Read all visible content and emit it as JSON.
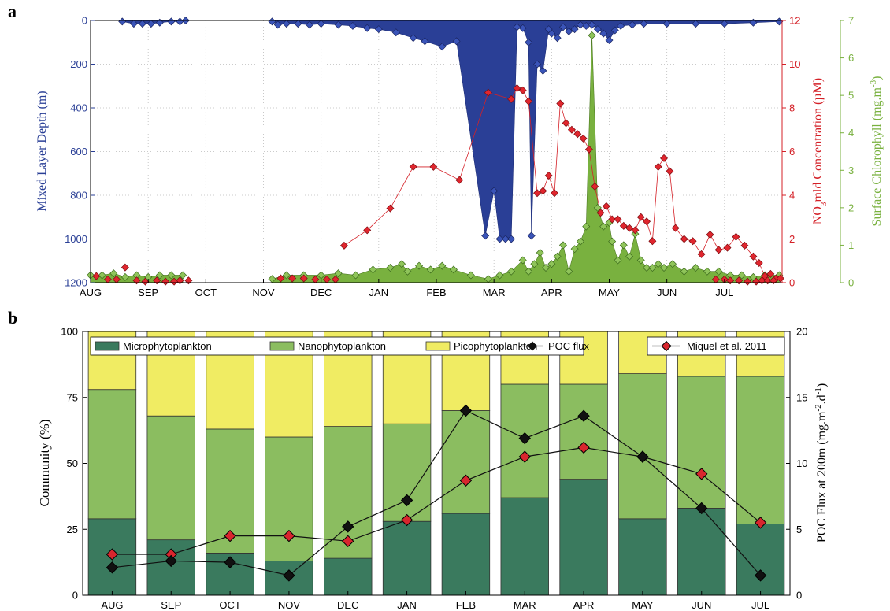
{
  "panel_a": {
    "letter": "a",
    "left_axis_label": "Mixed Layer Depth (m)",
    "mid_axis_label_parts": [
      "NO",
      "3",
      "mld Concentration (µM)"
    ],
    "right_axis_label_parts": [
      "Surface Chlorophyll (mg.m",
      "-3",
      ")"
    ]
  },
  "panel_b": {
    "letter": "b",
    "left_axis_label": "Community (%)",
    "right_axis_label_parts": [
      "POC Flux at 200m (mg.m",
      "-2",
      ".d",
      "-1",
      ")"
    ]
  },
  "colors": {
    "mld": "#2a3f96",
    "nitrate": "#d42027",
    "chl": "#79b13f",
    "micro": "#3a7a5e",
    "nano": "#8bbd60",
    "pico": "#f0ec63",
    "poc": "#1a1a1a"
  },
  "chart_data": [
    {
      "type": "area",
      "panel": "a",
      "x_ticks": [
        "AUG",
        "SEP",
        "OCT",
        "NOV",
        "DEC",
        "JAN",
        "FEB",
        "MAR",
        "APR",
        "MAY",
        "JUN",
        "JUL"
      ],
      "x_unit": "month (Aug=0 ... Jul=11, end=12)",
      "axes": {
        "mld": {
          "label": "Mixed Layer Depth (m)",
          "ylim": [
            1200,
            0
          ],
          "ticks": [
            0,
            200,
            400,
            600,
            800,
            1000,
            1200
          ],
          "reversed": true
        },
        "nitrate": {
          "label": "NO3mld Concentration (µM)",
          "ylim": [
            0,
            12
          ],
          "ticks": [
            0,
            2,
            4,
            6,
            8,
            10,
            12
          ]
        },
        "chl": {
          "label": "Surface Chlorophyll (mg.m-3)",
          "ylim": [
            0,
            7
          ],
          "ticks": [
            0,
            1,
            2,
            3,
            4,
            5,
            6,
            7
          ]
        }
      },
      "grid": true,
      "series": [
        {
          "key": "mld",
          "type": "area-with-markers",
          "segments": [
            [
              [
                0.55,
                5
              ],
              [
                0.75,
                15
              ],
              [
                0.9,
                15
              ],
              [
                1.05,
                15
              ],
              [
                1.2,
                10
              ],
              [
                1.4,
                5
              ],
              [
                1.55,
                5
              ],
              [
                1.65,
                0
              ]
            ],
            [
              [
                3.15,
                5
              ],
              [
                3.25,
                20
              ],
              [
                3.4,
                15
              ],
              [
                3.6,
                15
              ],
              [
                3.8,
                20
              ],
              [
                4.0,
                15
              ],
              [
                4.3,
                20
              ],
              [
                4.55,
                25
              ],
              [
                4.8,
                35
              ],
              [
                5.0,
                40
              ],
              [
                5.3,
                55
              ],
              [
                5.6,
                80
              ],
              [
                5.8,
                95
              ],
              [
                6.1,
                120
              ],
              [
                6.35,
                95
              ],
              [
                6.85,
                985
              ],
              [
                7.0,
                780
              ],
              [
                7.1,
                1000
              ],
              [
                7.2,
                1000
              ],
              [
                7.3,
                1000
              ],
              [
                7.4,
                30
              ],
              [
                7.5,
                35
              ],
              [
                7.6,
                100
              ],
              [
                7.65,
                985
              ],
              [
                7.75,
                200
              ],
              [
                7.85,
                230
              ],
              [
                7.95,
                40
              ],
              [
                8.0,
                60
              ],
              [
                8.1,
                80
              ],
              [
                8.2,
                30
              ],
              [
                8.3,
                50
              ],
              [
                8.4,
                40
              ],
              [
                8.5,
                20
              ],
              [
                8.6,
                25
              ],
              [
                8.7,
                20
              ],
              [
                8.8,
                40
              ],
              [
                8.9,
                60
              ],
              [
                9.0,
                90
              ],
              [
                9.1,
                45
              ],
              [
                9.2,
                25
              ],
              [
                9.4,
                20
              ],
              [
                9.6,
                15
              ],
              [
                10.0,
                15
              ],
              [
                10.5,
                15
              ],
              [
                11.0,
                15
              ],
              [
                11.5,
                10
              ],
              [
                11.95,
                5
              ]
            ]
          ]
        },
        {
          "key": "nitrate",
          "type": "line-with-markers",
          "points": [
            [
              0.1,
              0.3
            ],
            [
              0.6,
              0.7
            ],
            [
              1.15,
              0.1
            ],
            [
              1.55,
              0.1
            ],
            [
              1.7,
              0.1
            ],
            [
              4.4,
              1.7
            ],
            [
              4.8,
              2.4
            ],
            [
              5.2,
              3.4
            ],
            [
              5.6,
              5.3
            ],
            [
              5.95,
              5.3
            ],
            [
              6.4,
              4.7
            ],
            [
              6.9,
              8.7
            ],
            [
              7.3,
              8.4
            ],
            [
              7.4,
              8.9
            ],
            [
              7.5,
              8.8
            ],
            [
              7.6,
              8.3
            ],
            [
              7.75,
              4.1
            ],
            [
              7.85,
              4.2
            ],
            [
              7.95,
              4.9
            ],
            [
              8.05,
              4.1
            ],
            [
              8.15,
              8.2
            ],
            [
              8.25,
              7.3
            ],
            [
              8.35,
              7.0
            ],
            [
              8.45,
              6.8
            ],
            [
              8.55,
              6.6
            ],
            [
              8.65,
              6.1
            ],
            [
              8.75,
              4.4
            ],
            [
              8.85,
              3.2
            ],
            [
              8.95,
              3.5
            ],
            [
              9.05,
              2.9
            ],
            [
              9.15,
              2.9
            ],
            [
              9.25,
              2.6
            ],
            [
              9.35,
              2.5
            ],
            [
              9.45,
              2.4
            ],
            [
              9.55,
              3.0
            ],
            [
              9.65,
              2.8
            ],
            [
              9.75,
              1.9
            ],
            [
              9.85,
              5.3
            ],
            [
              9.95,
              5.7
            ],
            [
              10.05,
              5.1
            ],
            [
              10.15,
              2.5
            ],
            [
              10.3,
              2.0
            ],
            [
              10.45,
              1.9
            ],
            [
              10.6,
              1.3
            ],
            [
              10.75,
              2.2
            ],
            [
              10.9,
              1.5
            ],
            [
              11.05,
              1.6
            ],
            [
              11.2,
              2.1
            ],
            [
              11.35,
              1.7
            ],
            [
              11.5,
              1.2
            ],
            [
              11.6,
              0.9
            ],
            [
              11.7,
              0.3
            ],
            [
              11.8,
              0.4
            ],
            [
              11.9,
              0.2
            ],
            [
              11.97,
              0.2
            ]
          ],
          "dense_near_zero": [
            [
              0.3,
              0.15
            ],
            [
              0.45,
              0.15
            ],
            [
              0.8,
              0.1
            ],
            [
              0.95,
              0.05
            ],
            [
              1.3,
              0.05
            ],
            [
              1.45,
              0.05
            ],
            [
              3.3,
              0.2
            ],
            [
              3.5,
              0.2
            ],
            [
              3.7,
              0.2
            ],
            [
              3.9,
              0.15
            ],
            [
              4.1,
              0.15
            ],
            [
              4.25,
              0.15
            ],
            [
              10.85,
              0.15
            ],
            [
              11.0,
              0.15
            ],
            [
              11.1,
              0.1
            ],
            [
              11.25,
              0.1
            ],
            [
              11.4,
              0.05
            ],
            [
              11.55,
              0.05
            ],
            [
              11.65,
              0.1
            ],
            [
              11.75,
              0.1
            ],
            [
              11.85,
              0.1
            ]
          ]
        },
        {
          "key": "chl",
          "type": "area-with-markers",
          "segments": [
            [
              [
                0.0,
                0.2
              ],
              [
                0.2,
                0.2
              ],
              [
                0.4,
                0.25
              ],
              [
                0.6,
                0.15
              ],
              [
                0.8,
                0.2
              ],
              [
                1.0,
                0.15
              ],
              [
                1.2,
                0.2
              ],
              [
                1.4,
                0.2
              ],
              [
                1.6,
                0.2
              ]
            ],
            [
              [
                3.15,
                0.1
              ],
              [
                3.4,
                0.2
              ],
              [
                3.7,
                0.2
              ],
              [
                4.0,
                0.2
              ],
              [
                4.3,
                0.25
              ],
              [
                4.6,
                0.2
              ],
              [
                4.9,
                0.35
              ],
              [
                5.2,
                0.4
              ],
              [
                5.4,
                0.5
              ],
              [
                5.5,
                0.3
              ],
              [
                5.7,
                0.45
              ],
              [
                5.9,
                0.35
              ],
              [
                6.1,
                0.45
              ],
              [
                6.3,
                0.35
              ],
              [
                6.6,
                0.2
              ],
              [
                6.9,
                0.1
              ],
              [
                7.1,
                0.2
              ],
              [
                7.3,
                0.3
              ],
              [
                7.5,
                0.6
              ],
              [
                7.6,
                0.3
              ],
              [
                7.7,
                0.5
              ],
              [
                7.8,
                0.8
              ],
              [
                7.9,
                0.4
              ],
              [
                8.0,
                0.5
              ],
              [
                8.1,
                0.7
              ],
              [
                8.2,
                1.0
              ],
              [
                8.3,
                0.3
              ],
              [
                8.4,
                0.9
              ],
              [
                8.5,
                1.1
              ],
              [
                8.6,
                1.5
              ],
              [
                8.7,
                6.6
              ],
              [
                8.8,
                2.0
              ],
              [
                8.9,
                1.5
              ],
              [
                9.0,
                1.6
              ],
              [
                9.05,
                1.1
              ],
              [
                9.15,
                0.6
              ],
              [
                9.25,
                1.0
              ],
              [
                9.35,
                0.7
              ],
              [
                9.45,
                1.3
              ],
              [
                9.55,
                0.6
              ],
              [
                9.65,
                0.4
              ],
              [
                9.75,
                0.4
              ],
              [
                9.85,
                0.5
              ],
              [
                9.95,
                0.4
              ],
              [
                10.1,
                0.5
              ],
              [
                10.3,
                0.3
              ],
              [
                10.5,
                0.4
              ],
              [
                10.7,
                0.3
              ],
              [
                10.9,
                0.3
              ],
              [
                11.1,
                0.2
              ],
              [
                11.3,
                0.2
              ],
              [
                11.5,
                0.15
              ],
              [
                11.7,
                0.2
              ],
              [
                11.95,
                0.2
              ]
            ]
          ]
        }
      ]
    },
    {
      "type": "bar",
      "panel": "b",
      "stacked": true,
      "categories": [
        "AUG",
        "SEP",
        "OCT",
        "NOV",
        "DEC",
        "JAN",
        "FEB",
        "MAR",
        "APR",
        "MAY",
        "JUN",
        "JUL"
      ],
      "y_left": {
        "label": "Community (%)",
        "ylim": [
          0,
          100
        ],
        "ticks": [
          0,
          25,
          50,
          75,
          100
        ]
      },
      "y_right": {
        "label": "POC Flux at 200m (mg.m-2.d-1)",
        "ylim": [
          0,
          20
        ],
        "ticks": [
          0,
          5,
          10,
          15,
          20
        ]
      },
      "legend_left": {
        "entries": [
          "Microphytoplankton",
          "Nanophytoplankton",
          "Picophytoplankton",
          "POC flux"
        ],
        "position": "top-left"
      },
      "legend_right": {
        "entries": [
          "Miquel et al. 2011"
        ],
        "position": "top-right"
      },
      "series": [
        {
          "name": "Microphytoplankton",
          "values": [
            29,
            21,
            16,
            13,
            14,
            28,
            31,
            37,
            44,
            29,
            33,
            27
          ]
        },
        {
          "name": "Nanophytoplankton",
          "values": [
            49,
            47,
            47,
            47,
            50,
            37,
            39,
            43,
            36,
            55,
            50,
            56
          ]
        },
        {
          "name": "Picophytoplankton",
          "values": [
            22,
            32,
            37,
            40,
            36,
            35,
            30,
            20,
            20,
            16,
            17,
            17
          ]
        },
        {
          "name": "POC flux",
          "axis": "right",
          "values": [
            2.1,
            2.6,
            2.5,
            1.5,
            5.2,
            7.2,
            14.0,
            11.9,
            13.6,
            10.5,
            6.6,
            1.5
          ]
        },
        {
          "name": "Miquel et al. 2011",
          "axis": "right",
          "values": [
            3.1,
            3.1,
            4.5,
            4.5,
            4.1,
            5.7,
            8.7,
            10.5,
            11.2,
            10.5,
            9.2,
            5.5
          ]
        }
      ]
    }
  ]
}
